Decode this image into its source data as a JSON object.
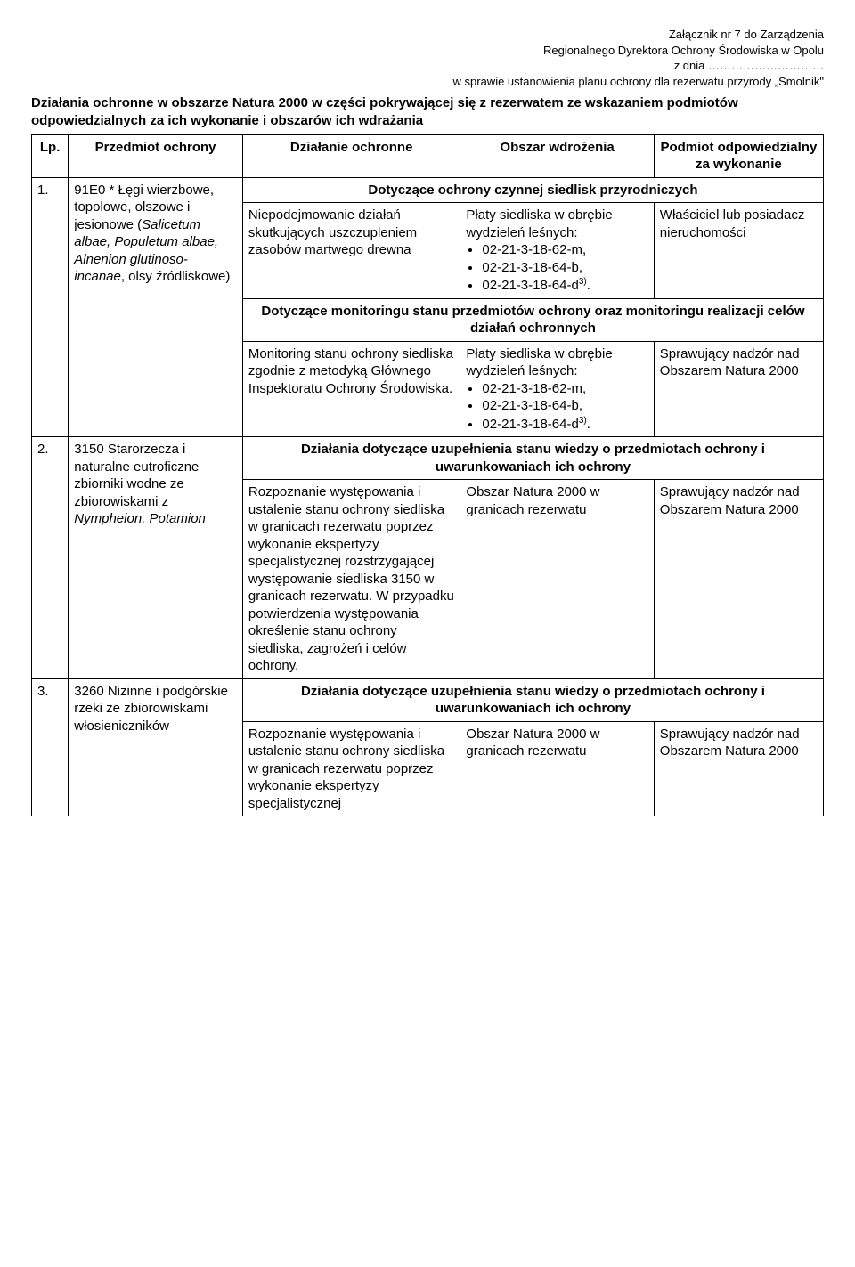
{
  "header": {
    "line1": "Załącznik nr 7 do Zarządzenia",
    "line2": "Regionalnego Dyrektora Ochrony Środowiska w Opolu",
    "line3": "z dnia …………………………",
    "line4": "w sprawie ustanowienia planu ochrony dla rezerwatu przyrody „Smolnik\""
  },
  "intro": "Działania ochronne w obszarze Natura 2000 w części pokrywającej się z rezerwatem ze wskazaniem podmiotów odpowiedzialnych za ich wykonanie i obszarów ich wdrażania",
  "thead": {
    "lp": "Lp.",
    "subject": "Przedmiot ochrony",
    "action": "Działanie ochronne",
    "area": "Obszar wdrożenia",
    "responsible": "Podmiot odpowiedzialny za wykonanie"
  },
  "row1": {
    "lp": "1.",
    "subject_pre": "91E0 * Łęgi wierzbowe, topolowe, olszowe i jesionowe (",
    "subject_italic": "Salicetum albae, Populetum albae, Alnenion glutinoso-incanae",
    "subject_post": ", olsy źródliskowe)",
    "section1": "Dotyczące ochrony czynnej siedlisk przyrodniczych",
    "a1_action": "Niepodejmowanie działań skutkujących uszczupleniem zasobów martwego drewna",
    "a1_area_intro": "Płaty siedliska w obrębie wydzieleń leśnych:",
    "a1_area_b1": "02-21-3-18-62-m,",
    "a1_area_b2": "02-21-3-18-64-b,",
    "a1_area_b3_pre": "02-21-3-18-64-d",
    "a1_area_b3_sup": "3)",
    "a1_area_b3_post": ".",
    "a1_resp": "Właściciel lub posiadacz nieruchomości",
    "section2": "Dotyczące monitoringu stanu przedmiotów ochrony oraz monitoringu realizacji celów działań ochronnych",
    "a2_action": "Monitoring stanu ochrony siedliska zgodnie z metodyką Głównego Inspektoratu Ochrony Środowiska.",
    "a2_area_intro": "Płaty siedliska w obrębie wydzieleń leśnych:",
    "a2_area_b1": "02-21-3-18-62-m,",
    "a2_area_b2": "02-21-3-18-64-b,",
    "a2_area_b3_pre": "02-21-3-18-64-d",
    "a2_area_b3_sup": "3)",
    "a2_area_b3_post": ".",
    "a2_resp": "Sprawujący nadzór nad Obszarem Natura 2000"
  },
  "row2": {
    "lp": "2.",
    "subject_pre": "3150 Starorzecza i naturalne eutroficzne zbiorniki wodne ze zbiorowiskami z ",
    "subject_italic": "Nympheion, Potamion",
    "section": "Działania dotyczące uzupełnienia stanu wiedzy o przedmiotach ochrony i uwarunkowaniach ich ochrony",
    "action": "Rozpoznanie występowania i ustalenie stanu ochrony siedliska w granicach rezerwatu poprzez wykonanie ekspertyzy specjalistycznej rozstrzygającej występowanie siedliska 3150 w granicach rezerwatu. W przypadku potwierdzenia występowania określenie stanu ochrony siedliska, zagrożeń i celów ochrony.",
    "area": "Obszar Natura 2000 w granicach rezerwatu",
    "resp": "Sprawujący nadzór nad Obszarem Natura 2000"
  },
  "row3": {
    "lp": "3.",
    "subject": "3260 Nizinne i podgórskie rzeki ze zbiorowiskami włosieniczników",
    "section": "Działania dotyczące uzupełnienia stanu wiedzy o przedmiotach ochrony i uwarunkowaniach ich ochrony",
    "action": "Rozpoznanie występowania i ustalenie stanu ochrony siedliska w granicach rezerwatu poprzez wykonanie ekspertyzy specjalistycznej",
    "area": "Obszar Natura 2000 w granicach rezerwatu",
    "resp": "Sprawujący nadzór nad Obszarem Natura 2000"
  }
}
